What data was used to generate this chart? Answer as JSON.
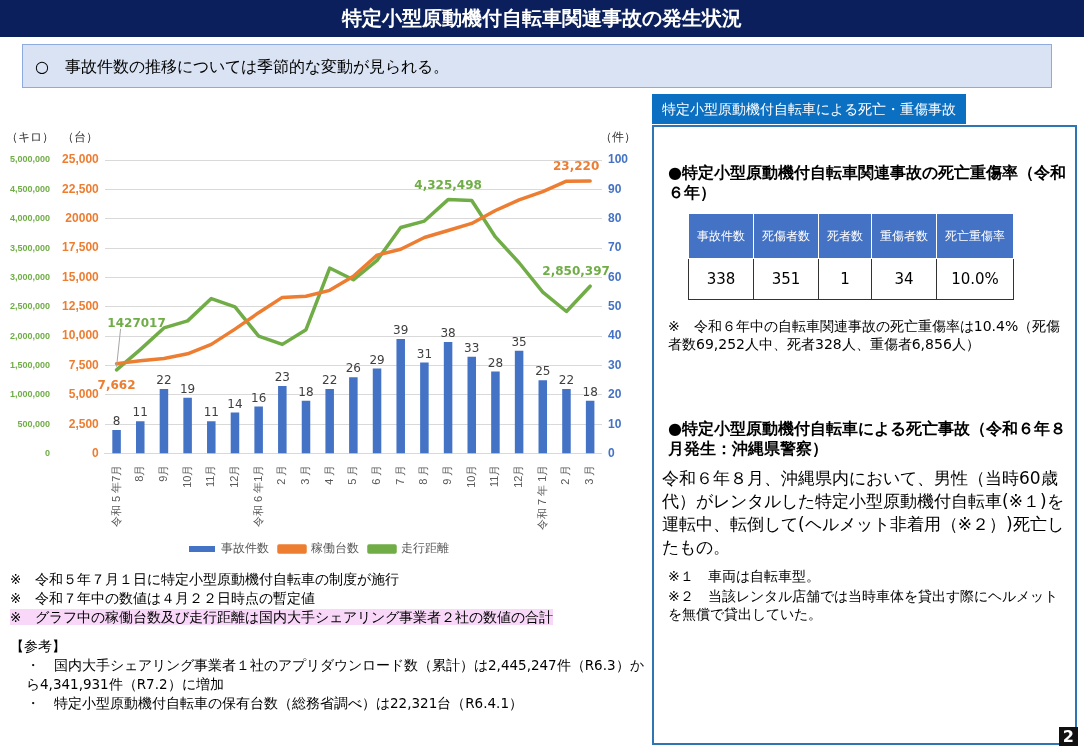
{
  "chart_data": [
    {
      "type": "bar",
      "title": "特定小型原動機付自転車関連事故の発生状況",
      "subtitle": "○　事故件数の推移については季節的な変動が見られる。",
      "categories": [
        "令和 5 年7月",
        "8月",
        "9月",
        "10月",
        "11月",
        "12月",
        "令和 6 年1月",
        "2 月",
        "3 月",
        "4 月",
        "5 月",
        "6 月",
        "7 月",
        "8 月",
        "9 月",
        "10月",
        "11月",
        "12月",
        "令和 7 年 1月",
        "2 月",
        "3 月"
      ],
      "series": [
        {
          "name": "事故件数",
          "type": "bar",
          "axis": "y2",
          "color": "#4472c4",
          "values": [
            8,
            11,
            22,
            19,
            11,
            14,
            16,
            23,
            18,
            22,
            26,
            29,
            39,
            31,
            38,
            33,
            28,
            35,
            25,
            22,
            18
          ],
          "value_labels": [
            "8",
            "11",
            "22",
            "19",
            "11",
            "14",
            "16",
            "23",
            "18",
            "22",
            "26",
            "29",
            "39",
            "31",
            "38",
            "33",
            "28",
            "35",
            "25",
            "22",
            "18"
          ]
        },
        {
          "name": "稼働台数",
          "type": "line",
          "axis": "y",
          "color": "#ed7d31",
          "values": [
            7662,
            7900,
            8100,
            8500,
            9300,
            10600,
            12000,
            13300,
            13400,
            13900,
            15100,
            16900,
            17400,
            18400,
            19000,
            19600,
            20700,
            21600,
            22300,
            23200,
            23220
          ],
          "value_labels": [
            "7,662",
            null,
            null,
            null,
            null,
            null,
            null,
            null,
            null,
            null,
            null,
            null,
            null,
            null,
            null,
            null,
            null,
            null,
            null,
            null,
            "23,220"
          ]
        },
        {
          "name": "走行距離",
          "type": "line",
          "axis": "y3",
          "color": "#70ad47",
          "values": [
            1427017,
            1770000,
            2140000,
            2260000,
            2640000,
            2500000,
            2000000,
            1860000,
            2110000,
            3160000,
            2960000,
            3290000,
            3850000,
            3960000,
            4325498,
            4310000,
            3690000,
            3250000,
            2750000,
            2420000,
            2850397
          ],
          "value_labels": [
            "1427017",
            null,
            null,
            null,
            null,
            null,
            null,
            null,
            null,
            null,
            null,
            null,
            null,
            null,
            "4,325,498",
            null,
            null,
            null,
            null,
            null,
            "2,850,397"
          ]
        }
      ],
      "ylabel": "（台）",
      "ylim": [
        0,
        25000
      ],
      "yticks": [
        0,
        {
          "value": 2500,
          "label": "2,500"
        },
        {
          "value": 5000,
          "label": "5,000"
        },
        {
          "value": 7500,
          "label": "7,500"
        },
        {
          "value": 10000,
          "label": "10,000"
        },
        {
          "value": 12500,
          "label": "12,500"
        },
        {
          "value": 15000,
          "label": "15,000"
        },
        {
          "value": 17500,
          "label": "17,500"
        },
        {
          "value": 20000,
          "label": "20000"
        },
        {
          "value": 22500,
          "label": "22,500"
        },
        {
          "value": 25000,
          "label": "25,000"
        }
      ],
      "y2label": "（件）",
      "y2lim": [
        0,
        100
      ],
      "y2ticks": [
        0,
        10,
        20,
        30,
        40,
        50,
        60,
        70,
        80,
        90,
        100
      ],
      "y3label": "（キロ）",
      "y3lim": [
        0,
        5000000
      ],
      "y3ticks": [
        0,
        {
          "value": 500000,
          "label": "500,000"
        },
        {
          "value": 1000000,
          "label": "1,000,000"
        },
        {
          "value": 1500000,
          "label": "1,500,000"
        },
        {
          "value": 2000000,
          "label": "2,000,000"
        },
        {
          "value": 2500000,
          "label": "2,500,000"
        },
        {
          "value": 3000000,
          "label": "3,000,000"
        },
        {
          "value": 3500000,
          "label": "3,500,000"
        },
        {
          "value": 4000000,
          "label": "4,000,000"
        },
        {
          "value": 4500000,
          "label": "4,500,000"
        },
        {
          "value": 5000000,
          "label": "5,000,000"
        }
      ],
      "grid": "y",
      "legend": "bottom",
      "annotations": [
        "※　令和５年７月１日に特定小型原動機付自転車の制度が施行",
        "※　令和７年中の数値は４月２２日時点の暫定値",
        "※　グラフ中の稼働台数及び走行距離は国内大手シェアリング事業者２社の数値の合計",
        "【参考】",
        "・　国内大手シェアリング事業者１社のアプリダウンロード数（累計）は2,445,247件（R6.3）から4,341,931件（R7.2）に増加",
        "・　特定小型原動機付自転車の保有台数（総務省調べ）は22,321台（R6.4.1）",
        "2"
      ]
    },
    {
      "type": "other",
      "title": "特定小型原動機付自転車による死亡・重傷事故",
      "annotations": [
        "●特定小型原動機付自転車関連事故の死亡重傷率（令和６年）",
        "事故件数",
        "死傷者数",
        "死者数",
        "重傷者数",
        "死亡重傷率",
        "338",
        "351",
        "1",
        "34",
        "10.0%",
        "※　令和６年中の自転車関連事故の死亡重傷率は10.4%（死傷者数69,252人中、死者328人、重傷者6,856人）",
        "●特定小型原動機付自転車による死亡事故（令和６年８月発生：沖縄県警察）",
        "令和６年８月、沖縄県内において、男性（当時60歳代）がレンタルした特定小型原動機付自転車(※１)を運転中、転倒して(ヘルメット非着用（※２）)死亡したもの。",
        "※１　車両は自転車型。",
        "※２　当該レンタル店舗では当時車体を貸出す際にヘルメットを無償で貸出していた。"
      ]
    }
  ]
}
